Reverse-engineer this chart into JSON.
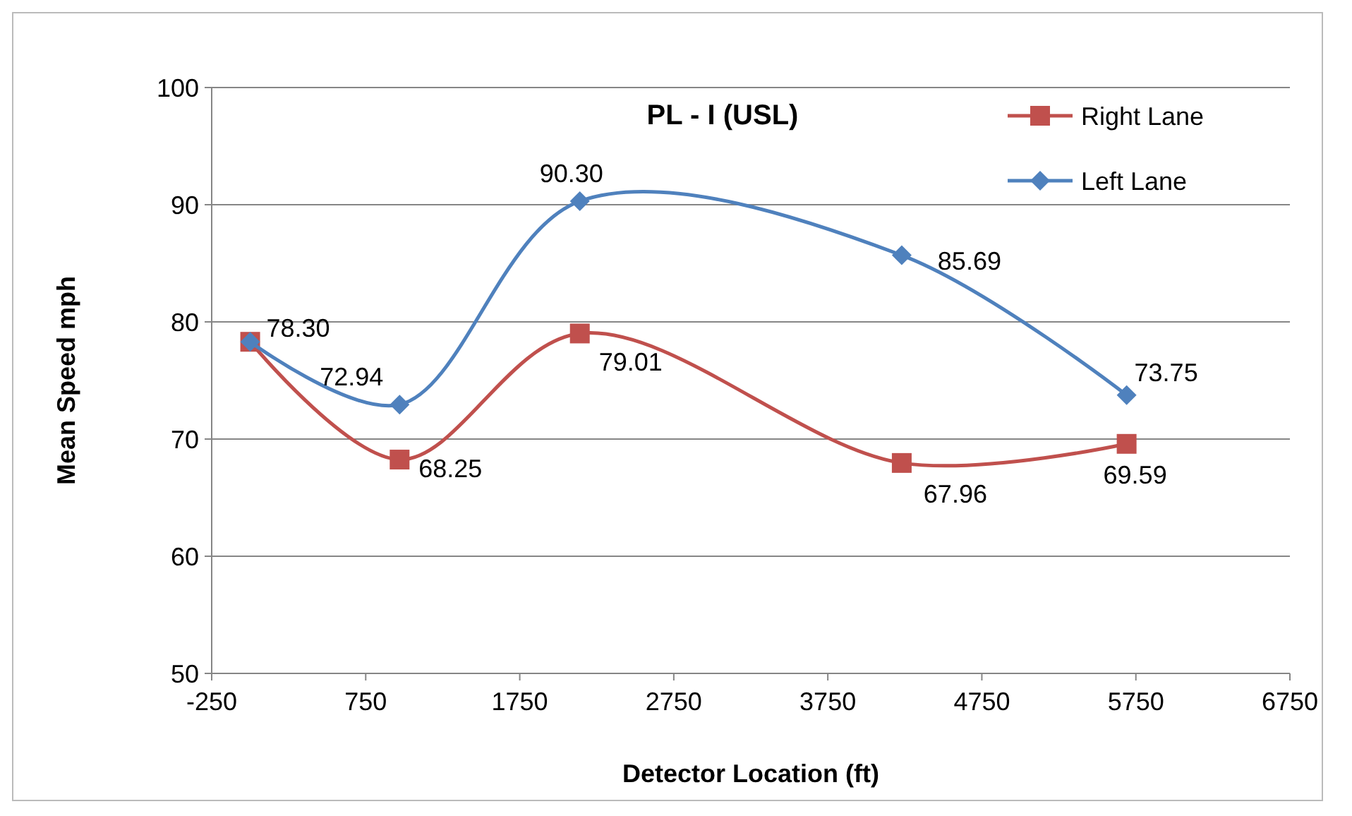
{
  "chart_data": {
    "type": "line",
    "title": "PL - I (USL)",
    "xlabel": "Detector Location (ft)",
    "ylabel": "Mean Speed mph",
    "xlim": [
      -250,
      6750
    ],
    "xticks": [
      -250,
      750,
      1750,
      2750,
      3750,
      4750,
      5750,
      6750
    ],
    "ylim": [
      50,
      100
    ],
    "yticks": [
      50,
      60,
      70,
      80,
      90,
      100
    ],
    "grid": "y",
    "legend": "top right",
    "x": [
      0,
      970,
      2140,
      4230,
      5690
    ],
    "series": [
      {
        "name": "Right Lane",
        "color": "#c0504d",
        "marker": "square",
        "values": [
          78.3,
          68.25,
          79.01,
          67.96,
          69.59
        ],
        "value_labels": [
          null,
          "68.25",
          "79.01",
          "67.96",
          "69.59"
        ]
      },
      {
        "name": "Left Lane",
        "color": "#4f81bd",
        "marker": "diamond",
        "values": [
          78.3,
          72.94,
          90.3,
          85.69,
          73.75
        ],
        "value_labels": [
          "78.30",
          "72.94",
          "90.30",
          "85.69",
          "73.75"
        ]
      }
    ]
  }
}
